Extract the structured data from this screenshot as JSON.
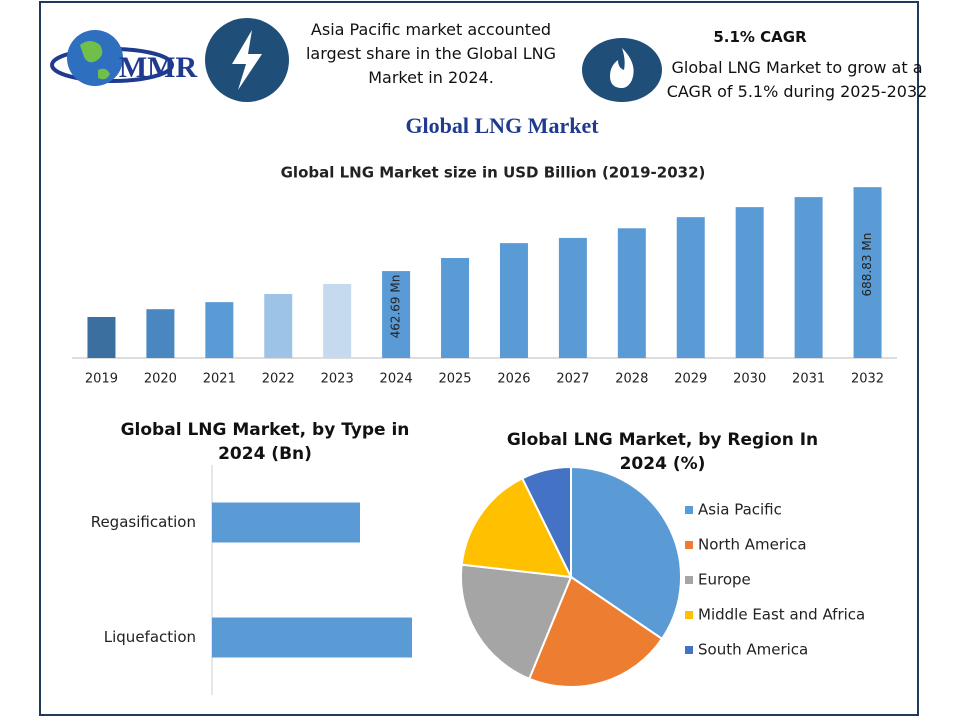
{
  "header": {
    "logo": "MMR",
    "note_left": "Asia Pacific market accounted largest share in the Global LNG Market in 2024.",
    "note_right_title": "5.1% CAGR",
    "note_right": "Global LNG Market to grow at a CAGR of 5.1% during 2025-2032",
    "title": "Global LNG Market"
  },
  "chart_data": [
    {
      "type": "bar",
      "title": "Global LNG Market size in USD Billion (2019-2032)",
      "categories": [
        "2019",
        "2020",
        "2021",
        "2022",
        "2023",
        "2024",
        "2025",
        "2026",
        "2027",
        "2028",
        "2029",
        "2030",
        "2031",
        "2032"
      ],
      "values": [
        339,
        360,
        379,
        401,
        428,
        462.69,
        498,
        538,
        552,
        578,
        608,
        635,
        662,
        688.83
      ],
      "value_labels": [
        null,
        null,
        null,
        null,
        null,
        "462.69 Mn",
        null,
        null,
        null,
        null,
        null,
        null,
        null,
        "688.83 Mn"
      ],
      "colors": [
        "#3b6f9f",
        "#4a86bf",
        "#5b9bd5",
        "#9dc3e6",
        "#c5d9ef",
        "#5b9bd5",
        "#5b9bd5",
        "#5b9bd5",
        "#5b9bd5",
        "#5b9bd5",
        "#5b9bd5",
        "#5b9bd5",
        "#5b9bd5",
        "#5b9bd5"
      ],
      "ylim": [
        228.5,
        700
      ]
    },
    {
      "type": "bar",
      "horizontal": true,
      "title": "Global LNG Market, by Type in 2024 (Bn)",
      "categories": [
        "Regasification",
        "Liquefaction"
      ],
      "values": [
        74,
        100
      ],
      "color": "#5b9bd5",
      "xlim": [
        0,
        120
      ]
    },
    {
      "type": "pie",
      "title": "Global LNG Market, by Region In 2024 (%)",
      "categories": [
        "Asia Pacific",
        "North America",
        "Europe",
        "Middle East and Africa",
        "South America"
      ],
      "values": [
        34.5,
        21.7,
        20.6,
        15.9,
        7.3
      ],
      "colors": [
        "#5b9bd5",
        "#ed7d31",
        "#a5a5a5",
        "#ffc000",
        "#4472c4"
      ],
      "legend": "right"
    }
  ]
}
